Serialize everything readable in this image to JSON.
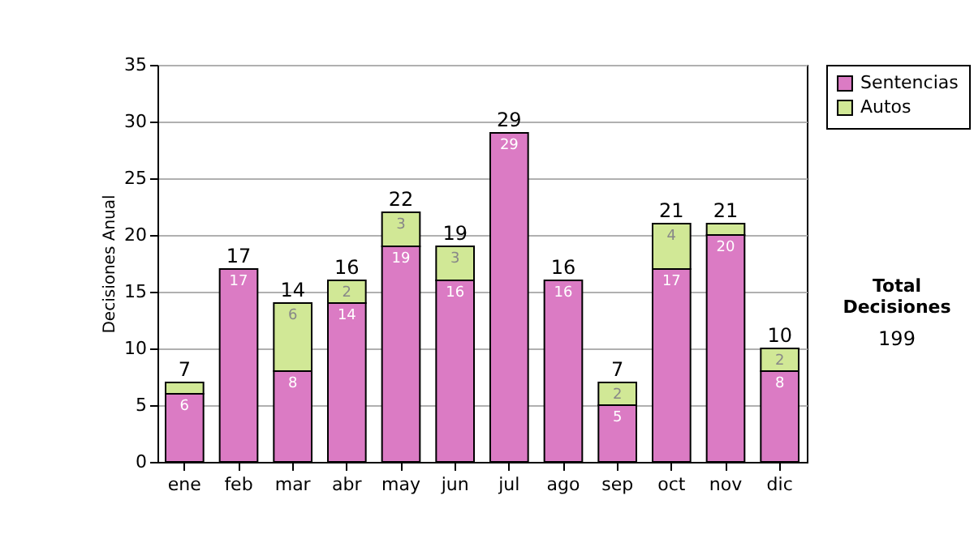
{
  "chart_data": {
    "type": "bar",
    "stacked": true,
    "ylabel": "Decisiones Anual",
    "categories": [
      "ene",
      "feb",
      "mar",
      "abr",
      "may",
      "jun",
      "jul",
      "ago",
      "sep",
      "oct",
      "nov",
      "dic"
    ],
    "series": [
      {
        "name": "Sentencias",
        "color": "#db7bc4",
        "values": [
          6,
          17,
          8,
          14,
          19,
          16,
          29,
          16,
          5,
          17,
          20,
          8
        ],
        "value_labels": [
          "6",
          "17",
          "8",
          "14",
          "19",
          "16",
          "29",
          "16",
          "5",
          "17",
          "20",
          "8"
        ]
      },
      {
        "name": "Autos",
        "color": "#d1e896",
        "values": [
          1,
          0,
          6,
          2,
          3,
          3,
          0,
          0,
          2,
          4,
          1,
          2
        ],
        "value_labels": [
          null,
          null,
          "6",
          "2",
          "3",
          "3",
          null,
          null,
          "2",
          "4",
          null,
          "2"
        ]
      }
    ],
    "totals": [
      "7",
      "17",
      "14",
      "16",
      "22",
      "19",
      "29",
      "16",
      "7",
      "21",
      "21",
      "10"
    ],
    "ylim": [
      0,
      35
    ],
    "yticks": [
      0,
      5,
      10,
      15,
      20,
      25,
      30,
      35
    ],
    "grid": "y",
    "legend": "right",
    "annotations": [
      "Total Decisiones",
      "199"
    ]
  }
}
